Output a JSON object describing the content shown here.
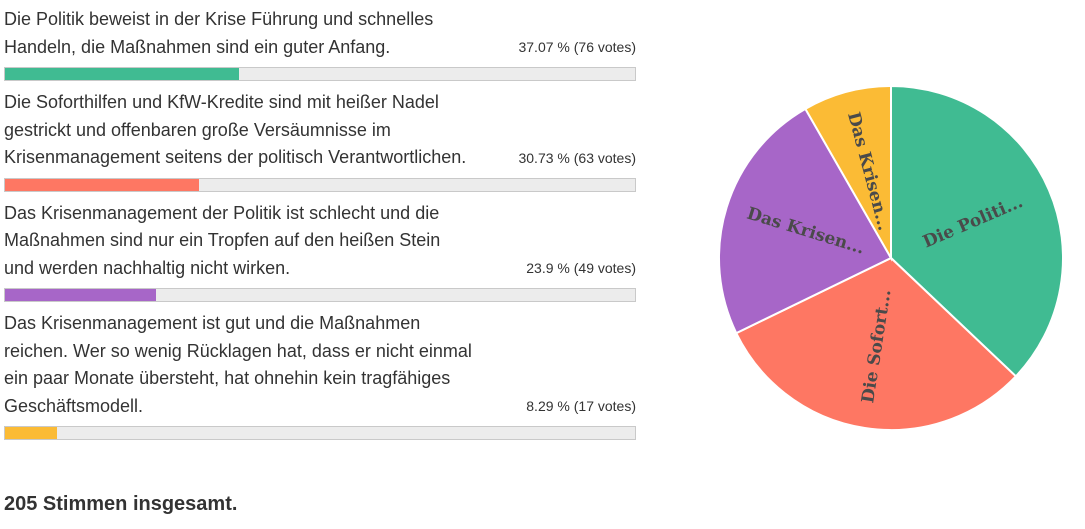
{
  "options": [
    {
      "text": "Die Politik beweist in der Krise Führung und schnelles Handeln, die Maßnahmen sind ein guter Anfang.",
      "stat": "37.07 % (76 votes)",
      "percent": 37.07,
      "votes": 76,
      "color": "#40bb92",
      "pie_label": "Die Politi..."
    },
    {
      "text": "Die Soforthilfen und KfW-Kredite sind mit heißer Nadel gestrickt und offenbaren große Versäumnisse im Krisenmanagement seitens der politisch Verantwortlichen.",
      "stat": "30.73 % (63 votes)",
      "percent": 30.73,
      "votes": 63,
      "color": "#fe7763",
      "pie_label": "Die Sofort..."
    },
    {
      "text": "Das Krisenmanagement der Politik ist schlecht und die Maßnahmen sind nur ein Tropfen auf den heißen Stein und werden nachhaltig nicht wirken.",
      "stat": "23.9 % (49 votes)",
      "percent": 23.9,
      "votes": 49,
      "color": "#a766c8",
      "pie_label": "Das Krisen..."
    },
    {
      "text": "Das Krisenmanagement ist gut und die Maßnahmen reichen. Wer so wenig Rücklagen hat, dass er nicht einmal ein paar Monate übersteht, hat ohnehin kein tragfähiges Geschäftsmodell.",
      "stat": "8.29 % (17 votes)",
      "percent": 8.29,
      "votes": 17,
      "color": "#fbbb35",
      "pie_label": "Das Krisen..."
    }
  ],
  "total_label": "205 Stimmen insgesamt.",
  "chart_data": {
    "type": "pie",
    "categories": [
      "Die Politik beweist in der Krise Führung und schnelles Handeln, die Maßnahmen sind ein guter Anfang.",
      "Die Soforthilfen und KfW-Kredite sind mit heißer Nadel gestrickt und offenbaren große Versäumnisse im Krisenmanagement seitens der politisch Verantwortlichen.",
      "Das Krisenmanagement der Politik ist schlecht und die Maßnahmen sind nur ein Tropfen auf den heißen Stein und werden nachhaltig nicht wirken.",
      "Das Krisenmanagement ist gut und die Maßnahmen reichen. Wer so wenig Rücklagen hat, dass er nicht einmal ein paar Monate übersteht, hat ohnehin kein tragfähiges Geschäftsmodell."
    ],
    "values": [
      76,
      63,
      49,
      17
    ],
    "percents": [
      37.07,
      30.73,
      23.9,
      8.29
    ],
    "slice_labels": [
      "Die Politi...",
      "Die Sofort...",
      "Das Krisen...",
      "Das Krisen..."
    ],
    "colors": [
      "#40bb92",
      "#fe7763",
      "#a766c8",
      "#fbbb35"
    ],
    "total": 205
  }
}
